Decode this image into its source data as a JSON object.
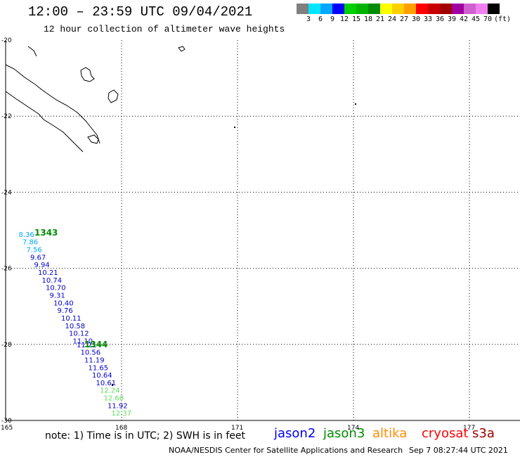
{
  "header": {
    "title": "12:00 – 23:59 UTC 09/04/2021",
    "subtitle": "12 hour collection of altimeter wave heights"
  },
  "legend": {
    "colors": [
      "#808080",
      "#00e5ff",
      "#00a8ff",
      "#0000ff",
      "#00d000",
      "#00b400",
      "#008c00",
      "#ffff00",
      "#ffd000",
      "#ffa000",
      "#ff0000",
      "#c80000",
      "#a00000",
      "#a000a0",
      "#d060d0",
      "#f080f0",
      "#000000"
    ],
    "labels": [
      "3",
      "6",
      "9",
      "12",
      "15",
      "18",
      "21",
      "24",
      "27",
      "30",
      "33",
      "36",
      "39",
      "42",
      "45",
      "70",
      "(ft)"
    ]
  },
  "axes": {
    "lat_labels": [
      "-20",
      "-22",
      "-24",
      "-26",
      "-28",
      "-30"
    ],
    "lon_labels": [
      "165",
      "168",
      "171",
      "174",
      "177"
    ]
  },
  "track_times": [
    "1343",
    "1344"
  ],
  "chart_data": {
    "type": "scatter",
    "x_range_lon": [
      165,
      179
    ],
    "y_range_lat": [
      -30,
      -20
    ],
    "series": [
      {
        "name": "jason2",
        "points": [
          {
            "lon": 165.3,
            "lat": -25.1,
            "swh": "8.36",
            "color": "#00a8ff"
          },
          {
            "lon": 165.4,
            "lat": -25.3,
            "swh": "7.86",
            "color": "#00a8ff"
          },
          {
            "lon": 165.5,
            "lat": -25.5,
            "swh": "7.56",
            "color": "#00a8ff"
          },
          {
            "lon": 165.6,
            "lat": -25.7,
            "swh": "9.67",
            "color": "#0000cc"
          },
          {
            "lon": 165.7,
            "lat": -25.9,
            "swh": "9.94",
            "color": "#0000cc"
          },
          {
            "lon": 165.8,
            "lat": -26.1,
            "swh": "10.21",
            "color": "#0000cc"
          },
          {
            "lon": 165.9,
            "lat": -26.3,
            "swh": "10.74",
            "color": "#0000cc"
          },
          {
            "lon": 166.0,
            "lat": -26.5,
            "swh": "10.70",
            "color": "#0000cc"
          },
          {
            "lon": 166.1,
            "lat": -26.7,
            "swh": "9.31",
            "color": "#0000cc"
          },
          {
            "lon": 166.2,
            "lat": -26.9,
            "swh": "10.40",
            "color": "#0000cc"
          },
          {
            "lon": 166.3,
            "lat": -27.1,
            "swh": "9.76",
            "color": "#0000cc"
          },
          {
            "lon": 166.4,
            "lat": -27.3,
            "swh": "10.11",
            "color": "#0000cc"
          },
          {
            "lon": 166.5,
            "lat": -27.5,
            "swh": "10.58",
            "color": "#0000cc"
          },
          {
            "lon": 166.6,
            "lat": -27.7,
            "swh": "10.12",
            "color": "#0000cc"
          },
          {
            "lon": 166.7,
            "lat": -27.9,
            "swh": "11.10",
            "color": "#0000cc"
          },
          {
            "lon": 166.8,
            "lat": -28.0,
            "swh": "11.21",
            "color": "#0000cc"
          },
          {
            "lon": 166.9,
            "lat": -28.2,
            "swh": "10.56",
            "color": "#0000cc"
          },
          {
            "lon": 167.0,
            "lat": -28.4,
            "swh": "11.19",
            "color": "#0000cc"
          },
          {
            "lon": 167.1,
            "lat": -28.6,
            "swh": "11.65",
            "color": "#0000cc"
          },
          {
            "lon": 167.2,
            "lat": -28.8,
            "swh": "10.64",
            "color": "#0000cc"
          },
          {
            "lon": 167.3,
            "lat": -29.0,
            "swh": "10.61",
            "color": "#0000cc"
          },
          {
            "lon": 167.4,
            "lat": -29.2,
            "swh": "12.24",
            "color": "#5ee05e"
          },
          {
            "lon": 167.5,
            "lat": -29.4,
            "swh": "12.60",
            "color": "#5ee05e"
          },
          {
            "lon": 167.6,
            "lat": -29.6,
            "swh": "11.92",
            "color": "#0000cc"
          },
          {
            "lon": 167.7,
            "lat": -29.8,
            "swh": "12.37",
            "color": "#5ee05e"
          }
        ]
      }
    ]
  },
  "footer": {
    "note": "note: 1) Time is in UTC; 2) SWH is in feet",
    "satellites": [
      {
        "name": "jason2",
        "color": "#0000ff"
      },
      {
        "name": "jason3",
        "color": "#008c00"
      },
      {
        "name": "altika",
        "color": "#ff8c00"
      },
      {
        "name": "cryosat",
        "color": "#ff0000"
      },
      {
        "name": "s3a",
        "color": "#a00000"
      }
    ],
    "credit": "NOAA/NESDIS Center for Satellite Applications and Research",
    "timestamp": "Sep  7 08:27:44 UTC 2021"
  }
}
